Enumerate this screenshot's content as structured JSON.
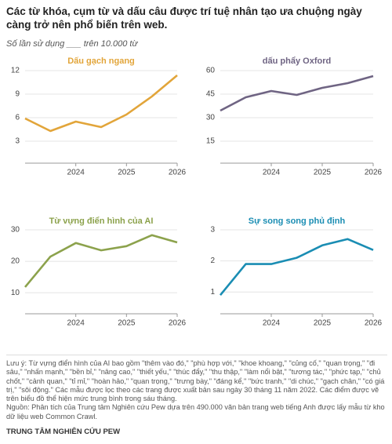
{
  "header": {
    "title": "Các từ khóa, cụm từ và dấu câu được trí tuệ nhân tạo ưa chuộng ngày càng trở nên phổ biến trên web.",
    "subtitle": "Số lần sử dụng ___ trên 10.000 từ"
  },
  "chart_data": [
    {
      "type": "line",
      "title": "Dấu gạch ngang",
      "x": [
        2023,
        2023.5,
        2024,
        2024.5,
        2025,
        2025.5,
        2026
      ],
      "series": [
        {
          "name": "Dấu gạch ngang",
          "color": "#e2a53a",
          "values": [
            5.9,
            4.3,
            5.5,
            4.8,
            6.4,
            8.7,
            11.4
          ]
        }
      ],
      "xlim": [
        2023,
        2026
      ],
      "xticks": [
        2024,
        2025,
        2026
      ],
      "ylim": [
        0.2,
        12.5
      ],
      "yticks": [
        3,
        6,
        9,
        12
      ],
      "grid": true
    },
    {
      "type": "line",
      "title": "dấu phẩy Oxford",
      "x": [
        2023,
        2023.5,
        2024,
        2024.5,
        2025,
        2025.5,
        2026
      ],
      "series": [
        {
          "name": "dấu phẩy Oxford",
          "color": "#6f6483",
          "values": [
            34.5,
            43,
            47,
            44.5,
            49,
            52,
            56.5
          ]
        }
      ],
      "xlim": [
        2023,
        2026
      ],
      "xticks": [
        2024,
        2025,
        2026
      ],
      "ylim": [
        1,
        62.5
      ],
      "yticks": [
        15,
        30,
        45,
        60
      ],
      "grid": true
    },
    {
      "type": "line",
      "title": "Từ vựng điển hình của AI",
      "x": [
        2023,
        2023.5,
        2024,
        2024.5,
        2025,
        2025.5,
        2026
      ],
      "series": [
        {
          "name": "Từ vựng điển hình của AI",
          "color": "#8ca24c",
          "values": [
            11.8,
            21.5,
            25.8,
            23.5,
            24.8,
            28.3,
            26
          ]
        }
      ],
      "xlim": [
        2023,
        2026
      ],
      "xticks": [
        2024,
        2025,
        2026
      ],
      "ylim": [
        3.3,
        31.25
      ],
      "yticks": [
        10,
        20,
        30
      ],
      "grid": true
    },
    {
      "type": "line",
      "title": "Sự song song phủ định",
      "x": [
        2023,
        2023.5,
        2024,
        2024.5,
        2025,
        2025.5,
        2026
      ],
      "series": [
        {
          "name": "Sự song song phủ định",
          "color": "#1a8db3",
          "values": [
            0.9,
            1.9,
            1.9,
            2.1,
            2.5,
            2.7,
            2.35
          ]
        }
      ],
      "xlim": [
        2023,
        2026
      ],
      "xticks": [
        2024,
        2025,
        2026
      ],
      "ylim": [
        0.3,
        3.125
      ],
      "yticks": [
        1,
        2,
        3
      ],
      "grid": true
    }
  ],
  "footer": {
    "note": "Lưu ý: Từ vựng điển hình của AI bao gồm \"thêm vào đó,\" \"phù hợp với,\" \"khoe khoang,\" \"củng cố,\" \"quan trọng,\" \"đi sâu,\" \"nhấn mạnh,\" \"bền bỉ,\" \"nâng cao,\" \"thiết yếu,\" \"thúc đẩy,\" \"thu thập,\" \"làm nổi bật,\" \"tương tác,\" \"phức tạp,\" \"chủ chốt,\" \"cảnh quan,\" \"tỉ mỉ,\" \"hoàn hảo,\" \"quan trọng,\" \"trưng bày,\" \"đáng kể,\" \"bức tranh,\" \"di chúc,\" \"gạch chân,\" \"có giá trị,\" \"sôi động.\" Các mẫu được lọc theo các trang được xuất bản sau ngày 30 tháng 11 năm 2022. Các điểm được vẽ trên biểu đồ thể hiện mức trung bình trong sáu tháng.",
    "source": "Nguồn: Phân tích của Trung tâm Nghiên cứu Pew dựa trên 490.000 văn bản trang web tiếng Anh được lấy mẫu từ kho dữ liệu web Common Crawl.",
    "brand": "TRUNG TÂM NGHIÊN CỨU PEW"
  }
}
